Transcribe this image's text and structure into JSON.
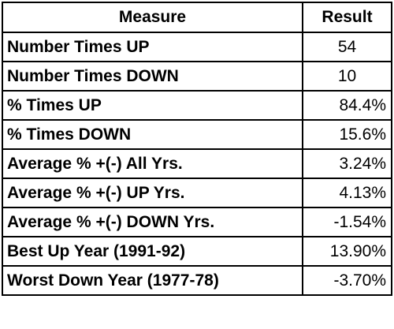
{
  "table": {
    "headers": {
      "measure": "Measure",
      "result": "Result"
    },
    "rows": [
      {
        "measure": "Number Times UP",
        "result": "54"
      },
      {
        "measure": "Number Times DOWN",
        "result": "10"
      },
      {
        "measure": "% Times UP",
        "result": "84.4%"
      },
      {
        "measure": "% Times DOWN",
        "result": "15.6%"
      },
      {
        "measure": "Average % +(-) All Yrs.",
        "result": "3.24%"
      },
      {
        "measure": "Average % +(-) UP Yrs.",
        "result": "4.13%"
      },
      {
        "measure": "Average % +(-) DOWN Yrs.",
        "result": "-1.54%"
      },
      {
        "measure": "Best Up Year (1991-92)",
        "result": "13.90%"
      },
      {
        "measure": "Worst Down Year (1977-78)",
        "result": "-3.70%"
      }
    ]
  }
}
